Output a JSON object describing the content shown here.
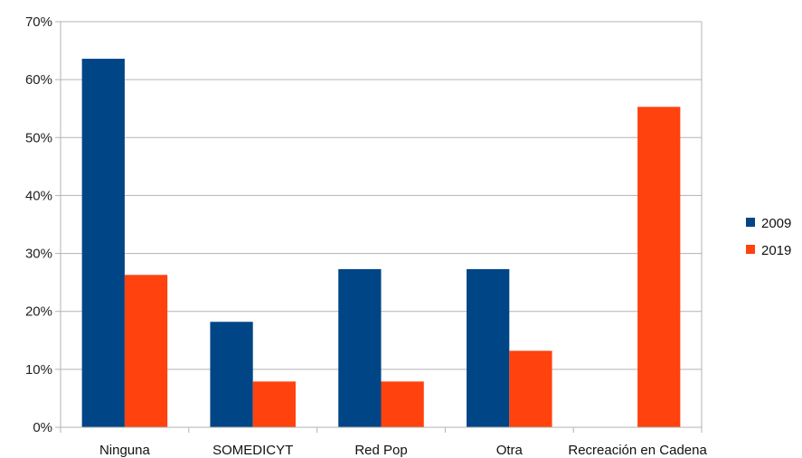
{
  "chart_data": {
    "type": "bar",
    "title": "",
    "xlabel": "",
    "ylabel": "",
    "categories": [
      "Ninguna",
      "SOMEDICYT",
      "Red Pop",
      "Otra",
      "Recreación en Cadena"
    ],
    "series": [
      {
        "name": "2009",
        "color": "#004586",
        "values": [
          63.6,
          18.2,
          27.3,
          27.3,
          0
        ]
      },
      {
        "name": "2019",
        "color": "#ff420e",
        "values": [
          26.3,
          7.9,
          7.9,
          13.2,
          55.3
        ]
      }
    ],
    "ylim": [
      0,
      70
    ],
    "yticks": [
      0,
      10,
      20,
      30,
      40,
      50,
      60,
      70
    ],
    "ytick_labels": [
      "0%",
      "10%",
      "20%",
      "30%",
      "40%",
      "50%",
      "60%",
      "70%"
    ],
    "grid": true,
    "legend_position": "right"
  }
}
